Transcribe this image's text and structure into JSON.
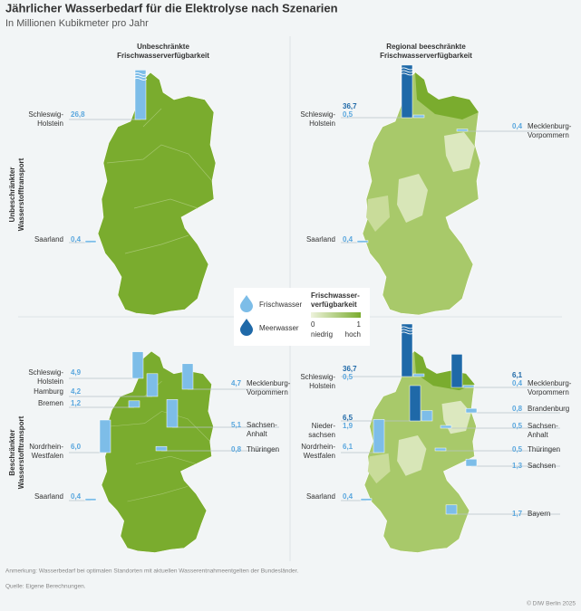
{
  "title": "Jährlicher Wasserbedarf für die Elektrolyse nach Szenarien",
  "subtitle": "In Millionen Kubikmeter pro Jahr",
  "column_headers": [
    [
      "Unbeschränkte",
      "Frischwasserverfügbarkeit"
    ],
    [
      "Regional beeschränkte",
      "Frischwasserverfügbarkeit"
    ]
  ],
  "row_headers": [
    [
      "Unbeschränkter",
      "Wasserstofftransport"
    ],
    [
      "Beschränkter",
      "Wasserstofftransport"
    ]
  ],
  "legend": {
    "water_types": [
      {
        "name": "Frischwasser",
        "color": "#7dbde8"
      },
      {
        "name": "Meerwasser",
        "color": "#1f69a8"
      }
    ],
    "availability_title": [
      "Frischwasser-",
      "verfügbarkeit"
    ],
    "scale": [
      "0",
      "1"
    ],
    "scale_labels": [
      "niedrig",
      "hoch"
    ],
    "colors": [
      "#eef3dc",
      "#7aac2e"
    ]
  },
  "panels": [
    {
      "items": [
        {
          "region": [
            "Schleswig-",
            "Holstein"
          ],
          "values": [
            {
              "value": 26.8,
              "label": "26,8",
              "water": 0
            }
          ]
        },
        {
          "region": [
            "Saarland"
          ],
          "values": [
            {
              "value": 0.4,
              "label": "0,4",
              "water": 0
            }
          ]
        }
      ]
    },
    {
      "items": [
        {
          "region": [
            "Schleswig-",
            "Holstein"
          ],
          "values": [
            {
              "value": 36.7,
              "label": "36,7",
              "water": 1
            },
            {
              "value": 0.5,
              "label": "0,5",
              "water": 0
            }
          ]
        },
        {
          "region": [
            "Mecklenburg-",
            "Vorpommern"
          ],
          "values": [
            {
              "value": 0.4,
              "label": "0,4",
              "water": 0
            }
          ]
        },
        {
          "region": [
            "Saarland"
          ],
          "values": [
            {
              "value": 0.4,
              "label": "0,4",
              "water": 0
            }
          ]
        }
      ]
    },
    {
      "items": [
        {
          "region": [
            "Schleswig-",
            "Holstein"
          ],
          "values": [
            {
              "value": 4.9,
              "label": "4,9",
              "water": 0
            }
          ]
        },
        {
          "region": [
            "Hamburg"
          ],
          "values": [
            {
              "value": 4.2,
              "label": "4,2",
              "water": 0
            }
          ]
        },
        {
          "region": [
            "Bremen"
          ],
          "values": [
            {
              "value": 1.2,
              "label": "1,2",
              "water": 0
            }
          ]
        },
        {
          "region": [
            "Nordrhein-",
            "Westfalen"
          ],
          "values": [
            {
              "value": 6.0,
              "label": "6,0",
              "water": 0
            }
          ]
        },
        {
          "region": [
            "Saarland"
          ],
          "values": [
            {
              "value": 0.4,
              "label": "0,4",
              "water": 0
            }
          ]
        },
        {
          "region": [
            "Mecklenburg-",
            "Vorpommern"
          ],
          "values": [
            {
              "value": 4.7,
              "label": "4,7",
              "water": 0
            }
          ]
        },
        {
          "region": [
            "Sachsen-",
            "Anhalt"
          ],
          "values": [
            {
              "value": 5.1,
              "label": "5,1",
              "water": 0
            }
          ]
        },
        {
          "region": [
            "Thüringen"
          ],
          "values": [
            {
              "value": 0.8,
              "label": "0,8",
              "water": 0
            }
          ]
        }
      ]
    },
    {
      "items": [
        {
          "region": [
            "Schleswig-",
            "Holstein"
          ],
          "values": [
            {
              "value": 36.7,
              "label": "36,7",
              "water": 1
            },
            {
              "value": 0.5,
              "label": "0,5",
              "water": 0
            }
          ]
        },
        {
          "region": [
            "Nieder-",
            "sachsen"
          ],
          "values": [
            {
              "value": 6.5,
              "label": "6,5",
              "water": 1
            },
            {
              "value": 1.9,
              "label": "1,9",
              "water": 0
            }
          ]
        },
        {
          "region": [
            "Nordrhein-",
            "Westfalen"
          ],
          "values": [
            {
              "value": 6.1,
              "label": "6,1",
              "water": 0
            }
          ]
        },
        {
          "region": [
            "Saarland"
          ],
          "values": [
            {
              "value": 0.4,
              "label": "0,4",
              "water": 0
            }
          ]
        },
        {
          "region": [
            "Mecklenburg-",
            "Vorpommern"
          ],
          "values": [
            {
              "value": 6.1,
              "label": "6,1",
              "water": 1
            },
            {
              "value": 0.4,
              "label": "0,4",
              "water": 0
            }
          ]
        },
        {
          "region": [
            "Brandenburg"
          ],
          "values": [
            {
              "value": 0.8,
              "label": "0,8",
              "water": 0
            }
          ]
        },
        {
          "region": [
            "Sachsen-",
            "Anhalt"
          ],
          "values": [
            {
              "value": 0.5,
              "label": "0,5",
              "water": 0
            }
          ]
        },
        {
          "region": [
            "Thüringen"
          ],
          "values": [
            {
              "value": 0.5,
              "label": "0,5",
              "water": 0
            }
          ]
        },
        {
          "region": [
            "Sachsen"
          ],
          "values": [
            {
              "value": 1.3,
              "label": "1,3",
              "water": 0
            }
          ]
        },
        {
          "region": [
            "Bayern"
          ],
          "values": [
            {
              "value": 1.7,
              "label": "1,7",
              "water": 0
            }
          ]
        }
      ]
    }
  ],
  "note": "Anmerkung: Wasserbedarf bei optimalen Standorten mit aktuellen Wasserentnahmeentgelten der Bundesländer.",
  "source": "Quelle: Eigene Berechnungen.",
  "copyright": "© DIW Berlin 2025"
}
